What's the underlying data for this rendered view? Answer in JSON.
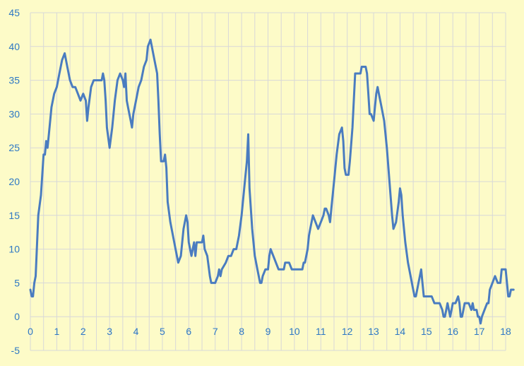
{
  "chart_data": {
    "type": "line",
    "title": "",
    "xlabel": "",
    "ylabel": "",
    "xlim": [
      0,
      18
    ],
    "ylim": [
      -5,
      45
    ],
    "x_ticks": [
      0,
      1,
      2,
      3,
      4,
      5,
      6,
      7,
      8,
      9,
      10,
      11,
      12,
      13,
      14,
      15,
      16,
      17,
      18
    ],
    "y_ticks": [
      -5,
      0,
      5,
      10,
      15,
      20,
      25,
      30,
      35,
      40,
      45
    ],
    "x_minor_step": 0.5,
    "grid": true,
    "colors": {
      "line": "#4a7cc0",
      "grid": "#d8d8d8",
      "background": "#fdfbc8",
      "tick_label": "#2e78c4"
    },
    "series": [
      {
        "points": [
          [
            0,
            4
          ],
          [
            0.05,
            3
          ],
          [
            0.1,
            3
          ],
          [
            0.15,
            5
          ],
          [
            0.2,
            6
          ],
          [
            0.3,
            15
          ],
          [
            0.4,
            18
          ],
          [
            0.5,
            24
          ],
          [
            0.55,
            24
          ],
          [
            0.6,
            26
          ],
          [
            0.65,
            25
          ],
          [
            0.7,
            27
          ],
          [
            0.8,
            31
          ],
          [
            0.9,
            33
          ],
          [
            1.0,
            34
          ],
          [
            1.1,
            36
          ],
          [
            1.2,
            38
          ],
          [
            1.3,
            39
          ],
          [
            1.4,
            37
          ],
          [
            1.5,
            35
          ],
          [
            1.6,
            34
          ],
          [
            1.7,
            34
          ],
          [
            1.8,
            33
          ],
          [
            1.9,
            32
          ],
          [
            2.0,
            33
          ],
          [
            2.1,
            32
          ],
          [
            2.15,
            29
          ],
          [
            2.2,
            31
          ],
          [
            2.3,
            34
          ],
          [
            2.4,
            35
          ],
          [
            2.5,
            35
          ],
          [
            2.6,
            35
          ],
          [
            2.7,
            35
          ],
          [
            2.75,
            36
          ],
          [
            2.8,
            35
          ],
          [
            2.85,
            32
          ],
          [
            2.9,
            28
          ],
          [
            3.0,
            25
          ],
          [
            3.1,
            28
          ],
          [
            3.2,
            32
          ],
          [
            3.3,
            35
          ],
          [
            3.4,
            36
          ],
          [
            3.5,
            35
          ],
          [
            3.55,
            34
          ],
          [
            3.6,
            36
          ],
          [
            3.65,
            32
          ],
          [
            3.7,
            31
          ],
          [
            3.8,
            29
          ],
          [
            3.85,
            28
          ],
          [
            3.9,
            30
          ],
          [
            4.0,
            32
          ],
          [
            4.1,
            34
          ],
          [
            4.2,
            35
          ],
          [
            4.3,
            37
          ],
          [
            4.4,
            38
          ],
          [
            4.45,
            40
          ],
          [
            4.55,
            41
          ],
          [
            4.6,
            40
          ],
          [
            4.7,
            38
          ],
          [
            4.8,
            36
          ],
          [
            4.85,
            32
          ],
          [
            4.9,
            27
          ],
          [
            4.95,
            23
          ],
          [
            5.05,
            23
          ],
          [
            5.1,
            24
          ],
          [
            5.15,
            22
          ],
          [
            5.2,
            17
          ],
          [
            5.3,
            14
          ],
          [
            5.4,
            12
          ],
          [
            5.5,
            10
          ],
          [
            5.55,
            9
          ],
          [
            5.6,
            8
          ],
          [
            5.7,
            9
          ],
          [
            5.8,
            13
          ],
          [
            5.9,
            15
          ],
          [
            5.95,
            14
          ],
          [
            6.0,
            11
          ],
          [
            6.1,
            9
          ],
          [
            6.15,
            10
          ],
          [
            6.2,
            11
          ],
          [
            6.25,
            9
          ],
          [
            6.3,
            11
          ],
          [
            6.4,
            11
          ],
          [
            6.5,
            11
          ],
          [
            6.55,
            12
          ],
          [
            6.6,
            10
          ],
          [
            6.7,
            9
          ],
          [
            6.8,
            6
          ],
          [
            6.85,
            5
          ],
          [
            6.9,
            5
          ],
          [
            7.0,
            5
          ],
          [
            7.1,
            6
          ],
          [
            7.15,
            7
          ],
          [
            7.2,
            6
          ],
          [
            7.25,
            7
          ],
          [
            7.4,
            8
          ],
          [
            7.5,
            9
          ],
          [
            7.6,
            9
          ],
          [
            7.7,
            10
          ],
          [
            7.8,
            10
          ],
          [
            7.9,
            12
          ],
          [
            8.0,
            15
          ],
          [
            8.1,
            19
          ],
          [
            8.2,
            23
          ],
          [
            8.25,
            27
          ],
          [
            8.3,
            19
          ],
          [
            8.4,
            13
          ],
          [
            8.5,
            9
          ],
          [
            8.6,
            7
          ],
          [
            8.7,
            5
          ],
          [
            8.75,
            5
          ],
          [
            8.8,
            6
          ],
          [
            8.9,
            7
          ],
          [
            9.0,
            7
          ],
          [
            9.05,
            9
          ],
          [
            9.1,
            10
          ],
          [
            9.2,
            9
          ],
          [
            9.3,
            8
          ],
          [
            9.4,
            7
          ],
          [
            9.5,
            7
          ],
          [
            9.6,
            7
          ],
          [
            9.65,
            8
          ],
          [
            9.8,
            8
          ],
          [
            9.9,
            7
          ],
          [
            10.0,
            7
          ],
          [
            10.1,
            7
          ],
          [
            10.2,
            7
          ],
          [
            10.3,
            7
          ],
          [
            10.35,
            8
          ],
          [
            10.4,
            8
          ],
          [
            10.5,
            10
          ],
          [
            10.55,
            12
          ],
          [
            10.6,
            13
          ],
          [
            10.7,
            15
          ],
          [
            10.8,
            14
          ],
          [
            10.9,
            13
          ],
          [
            11.0,
            14
          ],
          [
            11.1,
            15
          ],
          [
            11.15,
            16
          ],
          [
            11.2,
            16
          ],
          [
            11.3,
            15
          ],
          [
            11.35,
            14
          ],
          [
            11.4,
            16
          ],
          [
            11.5,
            20
          ],
          [
            11.6,
            24
          ],
          [
            11.7,
            27
          ],
          [
            11.8,
            28
          ],
          [
            11.85,
            26
          ],
          [
            11.9,
            22
          ],
          [
            11.95,
            21
          ],
          [
            12.05,
            21
          ],
          [
            12.1,
            23
          ],
          [
            12.2,
            28
          ],
          [
            12.3,
            36
          ],
          [
            12.4,
            36
          ],
          [
            12.5,
            36
          ],
          [
            12.55,
            37
          ],
          [
            12.6,
            37
          ],
          [
            12.7,
            37
          ],
          [
            12.75,
            36
          ],
          [
            12.8,
            33
          ],
          [
            12.85,
            30
          ],
          [
            12.9,
            30
          ],
          [
            13.0,
            29
          ],
          [
            13.05,
            31
          ],
          [
            13.1,
            33
          ],
          [
            13.15,
            34
          ],
          [
            13.2,
            33
          ],
          [
            13.3,
            31
          ],
          [
            13.4,
            29
          ],
          [
            13.5,
            25
          ],
          [
            13.6,
            20
          ],
          [
            13.7,
            15
          ],
          [
            13.75,
            13
          ],
          [
            13.85,
            14
          ],
          [
            13.95,
            17
          ],
          [
            14.0,
            19
          ],
          [
            14.05,
            18
          ],
          [
            14.1,
            15
          ],
          [
            14.2,
            11
          ],
          [
            14.3,
            8
          ],
          [
            14.4,
            6
          ],
          [
            14.5,
            4
          ],
          [
            14.55,
            3
          ],
          [
            14.6,
            3
          ],
          [
            14.7,
            5
          ],
          [
            14.8,
            7
          ],
          [
            14.85,
            5
          ],
          [
            14.9,
            3
          ],
          [
            15.0,
            3
          ],
          [
            15.1,
            3
          ],
          [
            15.2,
            3
          ],
          [
            15.3,
            2
          ],
          [
            15.4,
            2
          ],
          [
            15.5,
            2
          ],
          [
            15.6,
            1
          ],
          [
            15.65,
            0
          ],
          [
            15.7,
            0
          ],
          [
            15.75,
            1
          ],
          [
            15.8,
            2
          ],
          [
            15.85,
            1
          ],
          [
            15.9,
            0
          ],
          [
            16.0,
            2
          ],
          [
            16.1,
            2
          ],
          [
            16.2,
            3
          ],
          [
            16.25,
            2
          ],
          [
            16.3,
            0
          ],
          [
            16.35,
            0
          ],
          [
            16.4,
            1
          ],
          [
            16.45,
            2
          ],
          [
            16.6,
            2
          ],
          [
            16.7,
            1
          ],
          [
            16.75,
            2
          ],
          [
            16.8,
            1
          ],
          [
            16.9,
            1
          ],
          [
            16.95,
            0
          ],
          [
            17.0,
            0
          ],
          [
            17.05,
            -1
          ],
          [
            17.1,
            0
          ],
          [
            17.2,
            1
          ],
          [
            17.3,
            2
          ],
          [
            17.35,
            2
          ],
          [
            17.4,
            4
          ],
          [
            17.5,
            5
          ],
          [
            17.6,
            6
          ],
          [
            17.7,
            5
          ],
          [
            17.8,
            5
          ],
          [
            17.85,
            7
          ],
          [
            17.95,
            7
          ],
          [
            18.0,
            7
          ],
          [
            18.05,
            5
          ],
          [
            18.1,
            3
          ],
          [
            18.15,
            3
          ],
          [
            18.2,
            4
          ],
          [
            18.3,
            4
          ]
        ]
      }
    ]
  }
}
